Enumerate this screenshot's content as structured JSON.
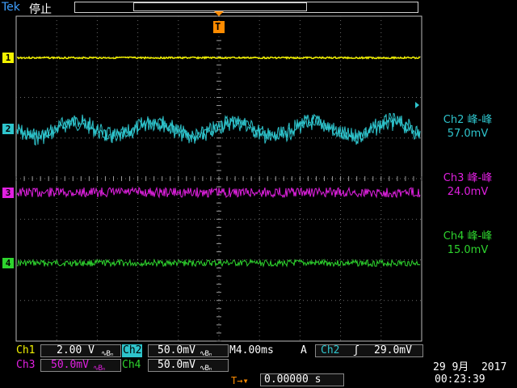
{
  "header": {
    "brand": "Tek",
    "status": "停止",
    "trigger_position_marker": "T"
  },
  "channels": [
    {
      "number": "1",
      "color": "#f2f200"
    },
    {
      "number": "2",
      "color": "#2ec4cc"
    },
    {
      "number": "3",
      "color": "#e020e0"
    },
    {
      "number": "4",
      "color": "#2ed42e"
    }
  ],
  "measurements": [
    {
      "title": "Ch2 峰-峰",
      "value": "57.0mV",
      "color": "#2ec4cc"
    },
    {
      "title": "Ch3 峰-峰",
      "value": "24.0mV",
      "color": "#e020e0"
    },
    {
      "title": "Ch4 峰-峰",
      "value": "15.0mV",
      "color": "#2ed42e"
    }
  ],
  "settings": {
    "ch1": {
      "label": "Ch1",
      "scale": "2.00 V",
      "color": "#f2f200"
    },
    "ch2": {
      "label": "Ch2",
      "scale": "50.0mV",
      "color": "#2ec4cc"
    },
    "ch3": {
      "label": "Ch3",
      "scale": "50.0mV",
      "color": "#e020e0"
    },
    "ch4": {
      "label": "Ch4",
      "scale": "50.0mV",
      "color": "#2ed42e"
    },
    "coupling_symbol": "∿Bₙ",
    "timebase": "M4.00ms",
    "trigger": {
      "mode": "A",
      "source": "Ch2",
      "slope": "ʃ",
      "level": "29.0mV"
    },
    "trigger_offset": "0.00000 s",
    "trigger_offset_icon": "T→▾"
  },
  "datetime": {
    "date": "29 9月  2017",
    "time": "00:23:39"
  }
}
